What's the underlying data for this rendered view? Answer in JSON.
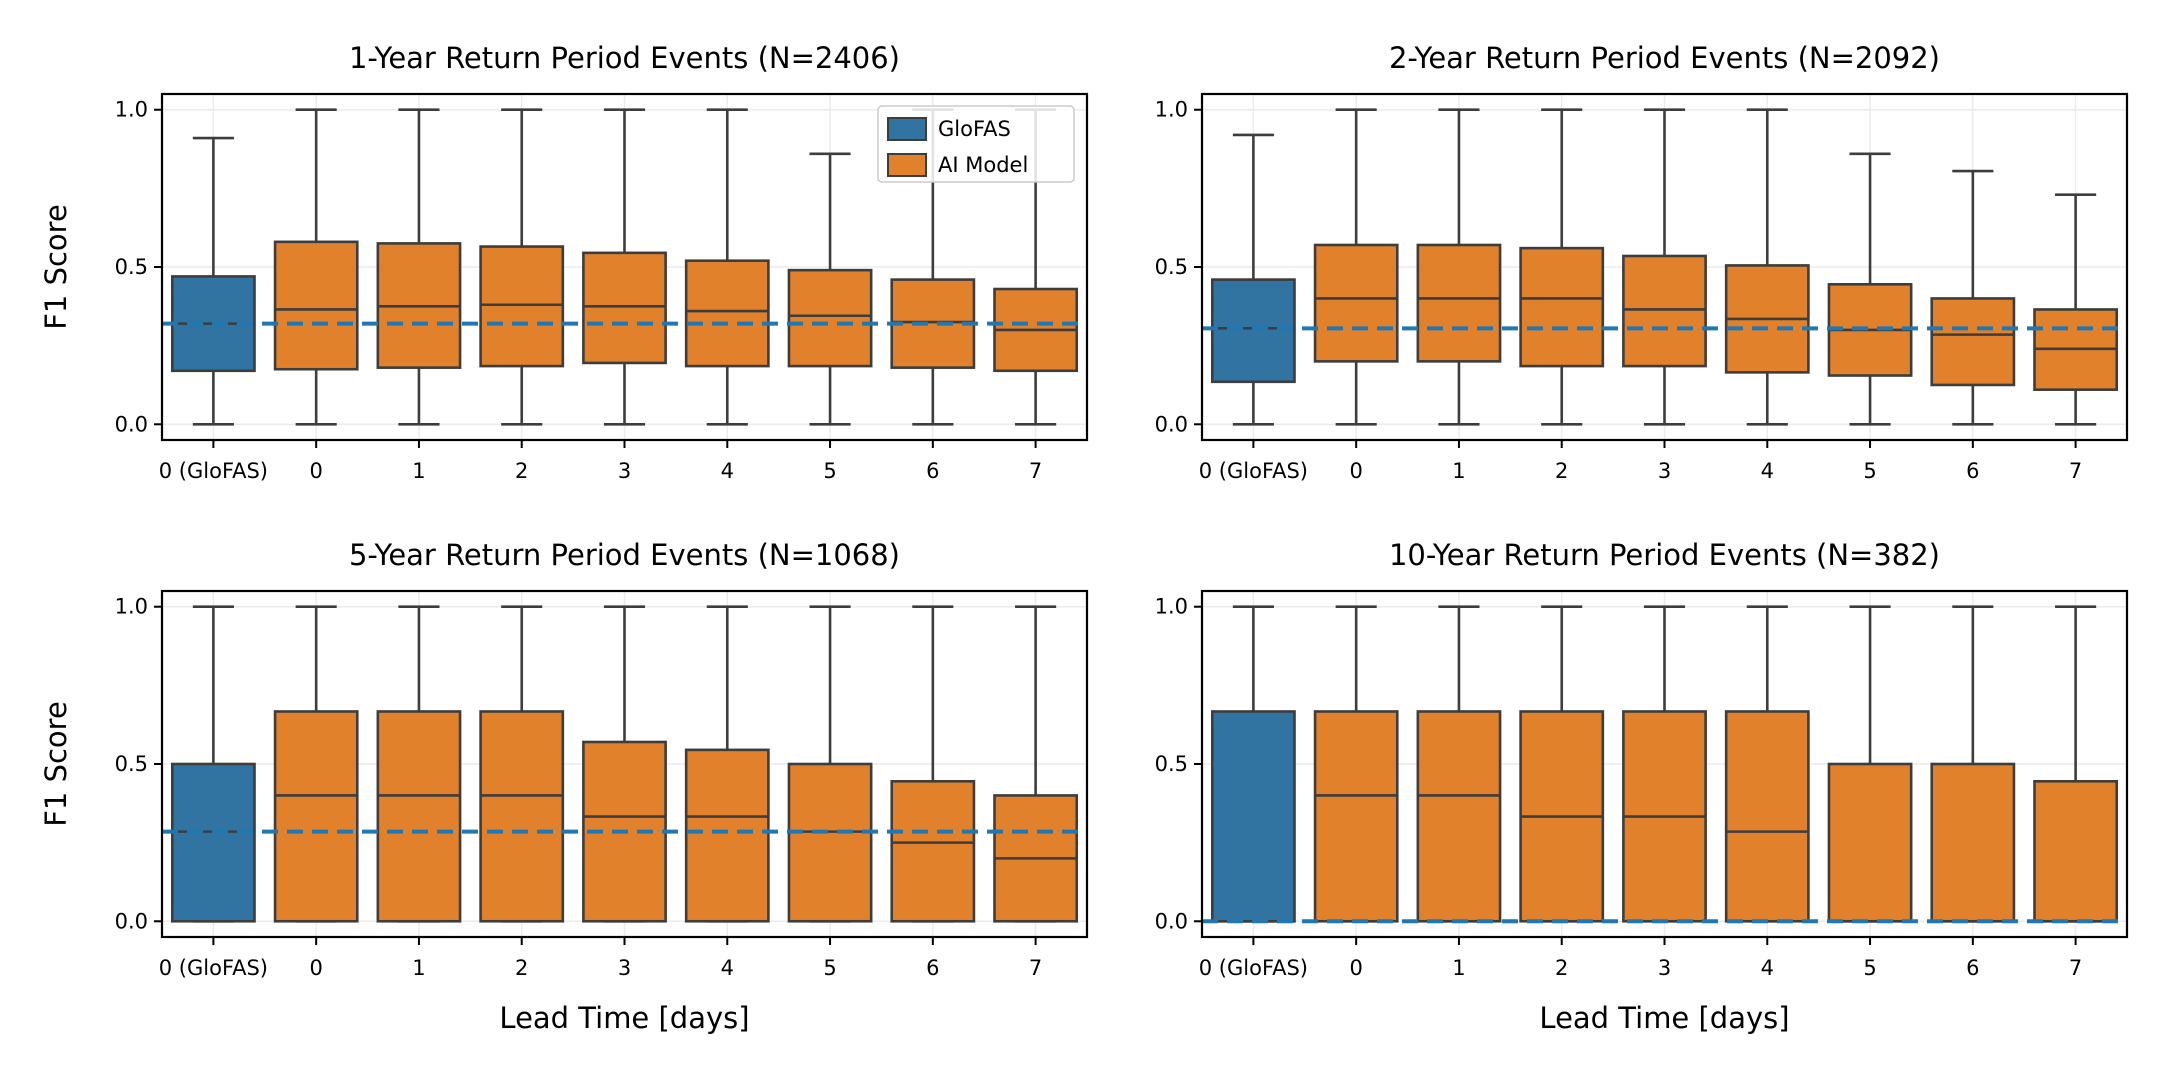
{
  "colors": {
    "glofas": "#3274a1",
    "ai_model": "#e1812c",
    "line": "#3d3d3d",
    "grid": "#ebebeb",
    "reference": "#1f77b4"
  },
  "legend": {
    "items": [
      {
        "label": "GloFAS",
        "color": "#3274a1"
      },
      {
        "label": "AI Model",
        "color": "#e1812c"
      }
    ],
    "placement": "top-right of first panel"
  },
  "chart_data": [
    {
      "type": "box",
      "title": "1-Year Return Period Events (N=2406)",
      "ylabel": "F1 Score",
      "xlabel": "",
      "categories": [
        "0 (GloFAS)",
        "0",
        "1",
        "2",
        "3",
        "4",
        "5",
        "6",
        "7"
      ],
      "yticks": [
        "0.0",
        "0.5",
        "1.0"
      ],
      "ylim": [
        -0.05,
        1.05
      ],
      "grid": true,
      "reference_line": 0.32,
      "boxes": [
        {
          "min": 0.0,
          "q1": 0.17,
          "median": 0.32,
          "q3": 0.47,
          "max": 0.91
        },
        {
          "min": 0.0,
          "q1": 0.175,
          "median": 0.365,
          "q3": 0.58,
          "max": 1.0
        },
        {
          "min": 0.0,
          "q1": 0.18,
          "median": 0.375,
          "q3": 0.575,
          "max": 1.0
        },
        {
          "min": 0.0,
          "q1": 0.185,
          "median": 0.38,
          "q3": 0.565,
          "max": 1.0
        },
        {
          "min": 0.0,
          "q1": 0.195,
          "median": 0.375,
          "q3": 0.545,
          "max": 1.0
        },
        {
          "min": 0.0,
          "q1": 0.185,
          "median": 0.36,
          "q3": 0.52,
          "max": 1.0
        },
        {
          "min": 0.0,
          "q1": 0.185,
          "median": 0.345,
          "q3": 0.49,
          "max": 0.86
        },
        {
          "min": 0.0,
          "q1": 0.18,
          "median": 0.325,
          "q3": 0.46,
          "max": 1.0
        },
        {
          "min": 0.0,
          "q1": 0.17,
          "median": 0.3,
          "q3": 0.43,
          "max": 1.0
        }
      ]
    },
    {
      "type": "box",
      "title": "2-Year Return Period Events (N=2092)",
      "ylabel": "",
      "xlabel": "",
      "categories": [
        "0 (GloFAS)",
        "0",
        "1",
        "2",
        "3",
        "4",
        "5",
        "6",
        "7"
      ],
      "yticks": [
        "0.0",
        "0.5",
        "1.0"
      ],
      "ylim": [
        -0.05,
        1.05
      ],
      "grid": true,
      "reference_line": 0.305,
      "boxes": [
        {
          "min": 0.0,
          "q1": 0.135,
          "median": 0.305,
          "q3": 0.46,
          "max": 0.92
        },
        {
          "min": 0.0,
          "q1": 0.2,
          "median": 0.4,
          "q3": 0.57,
          "max": 1.0
        },
        {
          "min": 0.0,
          "q1": 0.2,
          "median": 0.4,
          "q3": 0.57,
          "max": 1.0
        },
        {
          "min": 0.0,
          "q1": 0.185,
          "median": 0.4,
          "q3": 0.56,
          "max": 1.0
        },
        {
          "min": 0.0,
          "q1": 0.185,
          "median": 0.365,
          "q3": 0.535,
          "max": 1.0
        },
        {
          "min": 0.0,
          "q1": 0.165,
          "median": 0.335,
          "q3": 0.505,
          "max": 1.0
        },
        {
          "min": 0.0,
          "q1": 0.155,
          "median": 0.3,
          "q3": 0.445,
          "max": 0.86
        },
        {
          "min": 0.0,
          "q1": 0.125,
          "median": 0.285,
          "q3": 0.4,
          "max": 0.805
        },
        {
          "min": 0.0,
          "q1": 0.11,
          "median": 0.24,
          "q3": 0.365,
          "max": 0.73
        }
      ]
    },
    {
      "type": "box",
      "title": "5-Year Return Period Events (N=1068)",
      "ylabel": "F1 Score",
      "xlabel": "Lead Time [days]",
      "categories": [
        "0 (GloFAS)",
        "0",
        "1",
        "2",
        "3",
        "4",
        "5",
        "6",
        "7"
      ],
      "yticks": [
        "0.0",
        "0.5",
        "1.0"
      ],
      "ylim": [
        -0.05,
        1.05
      ],
      "grid": true,
      "reference_line": 0.285,
      "boxes": [
        {
          "min": 0.0,
          "q1": 0.0,
          "median": 0.285,
          "q3": 0.5,
          "max": 1.0
        },
        {
          "min": 0.0,
          "q1": 0.0,
          "median": 0.4,
          "q3": 0.667,
          "max": 1.0
        },
        {
          "min": 0.0,
          "q1": 0.0,
          "median": 0.4,
          "q3": 0.667,
          "max": 1.0
        },
        {
          "min": 0.0,
          "q1": 0.0,
          "median": 0.4,
          "q3": 0.667,
          "max": 1.0
        },
        {
          "min": 0.0,
          "q1": 0.0,
          "median": 0.333,
          "q3": 0.57,
          "max": 1.0
        },
        {
          "min": 0.0,
          "q1": 0.0,
          "median": 0.333,
          "q3": 0.545,
          "max": 1.0
        },
        {
          "min": 0.0,
          "q1": 0.0,
          "median": 0.285,
          "q3": 0.5,
          "max": 1.0
        },
        {
          "min": 0.0,
          "q1": 0.0,
          "median": 0.25,
          "q3": 0.445,
          "max": 1.0
        },
        {
          "min": 0.0,
          "q1": 0.0,
          "median": 0.2,
          "q3": 0.4,
          "max": 1.0
        }
      ]
    },
    {
      "type": "box",
      "title": "10-Year Return Period Events (N=382)",
      "ylabel": "",
      "xlabel": "Lead Time [days]",
      "categories": [
        "0 (GloFAS)",
        "0",
        "1",
        "2",
        "3",
        "4",
        "5",
        "6",
        "7"
      ],
      "yticks": [
        "0.0",
        "0.5",
        "1.0"
      ],
      "ylim": [
        -0.05,
        1.05
      ],
      "grid": true,
      "reference_line": 0.0,
      "boxes": [
        {
          "min": 0.0,
          "q1": 0.0,
          "median": 0.0,
          "q3": 0.667,
          "max": 1.0
        },
        {
          "min": 0.0,
          "q1": 0.0,
          "median": 0.4,
          "q3": 0.667,
          "max": 1.0
        },
        {
          "min": 0.0,
          "q1": 0.0,
          "median": 0.4,
          "q3": 0.667,
          "max": 1.0
        },
        {
          "min": 0.0,
          "q1": 0.0,
          "median": 0.333,
          "q3": 0.667,
          "max": 1.0
        },
        {
          "min": 0.0,
          "q1": 0.0,
          "median": 0.333,
          "q3": 0.667,
          "max": 1.0
        },
        {
          "min": 0.0,
          "q1": 0.0,
          "median": 0.285,
          "q3": 0.667,
          "max": 1.0
        },
        {
          "min": 0.0,
          "q1": 0.0,
          "median": 0.0,
          "q3": 0.5,
          "max": 1.0
        },
        {
          "min": 0.0,
          "q1": 0.0,
          "median": 0.0,
          "q3": 0.5,
          "max": 1.0
        },
        {
          "min": 0.0,
          "q1": 0.0,
          "median": 0.0,
          "q3": 0.445,
          "max": 1.0
        }
      ]
    }
  ]
}
